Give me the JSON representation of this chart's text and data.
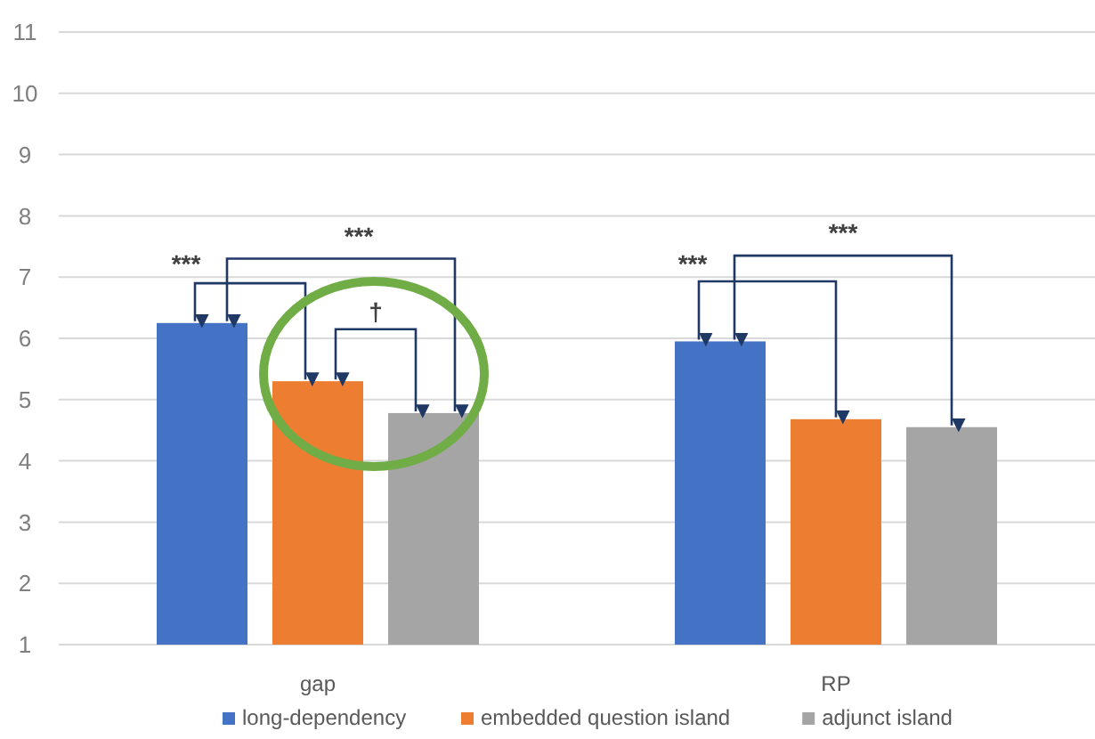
{
  "chart_data": {
    "type": "bar",
    "categories": [
      "gap",
      "RP"
    ],
    "series": [
      {
        "name": "long-dependency",
        "color": "#4472c4",
        "values": [
          6.25,
          5.95
        ]
      },
      {
        "name": "embedded question island",
        "color": "#ed7d31",
        "values": [
          5.3,
          4.68
        ]
      },
      {
        "name": "adjunct island",
        "color": "#a5a5a5",
        "values": [
          4.78,
          4.55
        ]
      }
    ],
    "ylim": [
      1,
      11
    ],
    "yticks": [
      1,
      2,
      3,
      4,
      5,
      6,
      7,
      8,
      9,
      10,
      11
    ],
    "grid": "y",
    "legend": "bottom",
    "annotations": [
      "***",
      "***",
      "†",
      "***",
      "***"
    ]
  }
}
